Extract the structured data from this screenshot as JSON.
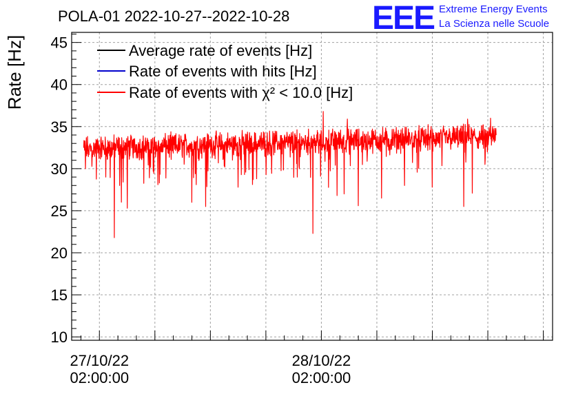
{
  "logo": {
    "mark": "EEE",
    "line1": "Extreme Energy Events",
    "line2": "La Scienza nelle Scuole"
  },
  "chart_data": {
    "type": "line",
    "title": "POLA-01 2022-10-27--2022-10-28",
    "ylabel": "Rate [Hz]",
    "xlabel": "",
    "ylim": [
      9.6,
      46.2
    ],
    "yticks": [
      10,
      15,
      20,
      25,
      30,
      35,
      40,
      45
    ],
    "xlim_hours": [
      -3.0,
      49.0
    ],
    "x_unit": "hours since 2022-10-27 02:00:00",
    "x_major_ticks": [
      {
        "hour": 0,
        "date": "27/10/22",
        "time": "02:00:00"
      },
      {
        "hour": 24,
        "date": "28/10/22",
        "time": "02:00:00"
      }
    ],
    "grid": true,
    "legend_position": "top-left",
    "data_range_hours": [
      -1.7,
      42.9
    ],
    "series": [
      {
        "name": "Average rate of events [Hz]",
        "color": "#000000",
        "level": 33.2
      },
      {
        "name": "Rate of events with hits [Hz]",
        "color": "#0000cc",
        "level": 33.2
      },
      {
        "name": "Rate of events with χ² < 10.0 [Hz]",
        "color": "#ff0000",
        "start_level": 32.4,
        "end_level": 33.8,
        "noise_amplitude": 2.2,
        "dips": [
          {
            "hour": -1.5,
            "value": 30.0
          },
          {
            "hour": 0.7,
            "value": 29.0
          },
          {
            "hour": 1.6,
            "value": 21.8
          },
          {
            "hour": 2.2,
            "value": 28.0
          },
          {
            "hour": 3.0,
            "value": 25.3
          },
          {
            "hour": 6.5,
            "value": 28.3
          },
          {
            "hour": 10.0,
            "value": 26.0
          },
          {
            "hour": 11.5,
            "value": 25.5
          },
          {
            "hour": 15.0,
            "value": 27.8
          },
          {
            "hour": 17.0,
            "value": 28.8
          },
          {
            "hour": 23.1,
            "value": 22.3
          },
          {
            "hour": 25.7,
            "value": 26.8
          },
          {
            "hour": 28.0,
            "value": 25.6
          },
          {
            "hour": 30.5,
            "value": 26.5
          },
          {
            "hour": 33.0,
            "value": 28.0
          },
          {
            "hour": 36.0,
            "value": 27.8
          },
          {
            "hour": 39.4,
            "value": 25.5
          },
          {
            "hour": 41.7,
            "value": 30.5
          }
        ],
        "spikes": [
          {
            "hour": 24.2,
            "value": 36.8
          },
          {
            "hour": 26.8,
            "value": 35.9
          },
          {
            "hour": 39.8,
            "value": 35.9
          },
          {
            "hour": 42.3,
            "value": 36.0
          }
        ]
      }
    ]
  }
}
